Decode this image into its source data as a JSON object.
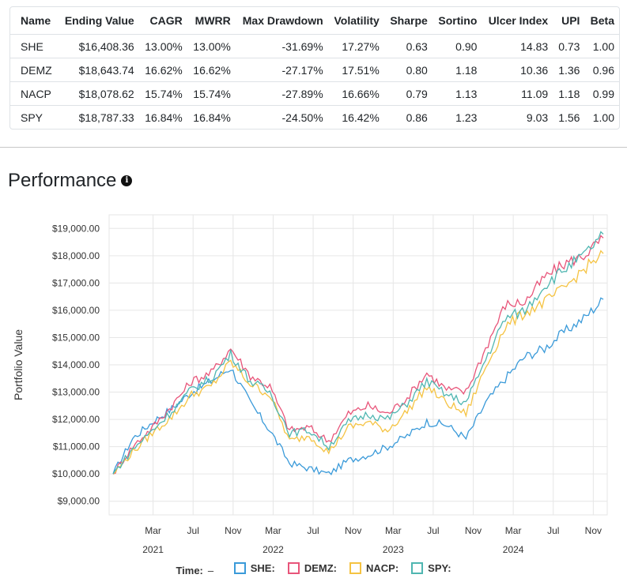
{
  "table": {
    "headers": [
      "Name",
      "Ending Value",
      "CAGR",
      "MWRR",
      "Max Drawdown",
      "Volatility",
      "Sharpe",
      "Sortino",
      "Ulcer Index",
      "UPI",
      "Beta"
    ],
    "rows": [
      [
        "SHE",
        "$16,408.36",
        "13.00%",
        "13.00%",
        "-31.69%",
        "17.27%",
        "0.63",
        "0.90",
        "14.83",
        "0.73",
        "1.00"
      ],
      [
        "DEMZ",
        "$18,643.74",
        "16.62%",
        "16.62%",
        "-27.17%",
        "17.51%",
        "0.80",
        "1.18",
        "10.36",
        "1.36",
        "0.96"
      ],
      [
        "NACP",
        "$18,078.62",
        "15.74%",
        "15.74%",
        "-27.89%",
        "16.66%",
        "0.79",
        "1.13",
        "11.09",
        "1.18",
        "0.99"
      ],
      [
        "SPY",
        "$18,787.33",
        "16.84%",
        "16.84%",
        "-24.50%",
        "16.42%",
        "0.86",
        "1.23",
        "9.03",
        "1.56",
        "1.00"
      ]
    ]
  },
  "section": {
    "title": "Performance",
    "info_icon": "info-circle-icon"
  },
  "chart_data": {
    "type": "line",
    "ylabel": "Portfolio Value",
    "xlabel": "",
    "ylim": [
      8500,
      19500
    ],
    "y_ticks": [
      "$9,000.00",
      "$10,000.00",
      "$11,000.00",
      "$12,000.00",
      "$13,000.00",
      "$14,000.00",
      "$15,000.00",
      "$16,000.00",
      "$17,000.00",
      "$18,000.00",
      "$19,000.00"
    ],
    "x_ticks": [
      {
        "month": "Mar",
        "year": "2021"
      },
      {
        "month": "Jul",
        "year": ""
      },
      {
        "month": "Nov",
        "year": ""
      },
      {
        "month": "Mar",
        "year": "2022"
      },
      {
        "month": "Jul",
        "year": ""
      },
      {
        "month": "Nov",
        "year": ""
      },
      {
        "month": "Mar",
        "year": "2023"
      },
      {
        "month": "Jul",
        "year": ""
      },
      {
        "month": "Nov",
        "year": ""
      },
      {
        "month": "Mar",
        "year": "2024"
      },
      {
        "month": "Jul",
        "year": ""
      },
      {
        "month": "Nov",
        "year": ""
      }
    ],
    "x": [
      "2020-11",
      "2021-01",
      "2021-03",
      "2021-05",
      "2021-07",
      "2021-09",
      "2021-11",
      "2022-01",
      "2022-03",
      "2022-05",
      "2022-07",
      "2022-09",
      "2022-11",
      "2023-01",
      "2023-03",
      "2023-05",
      "2023-07",
      "2023-09",
      "2023-11",
      "2024-01",
      "2024-03",
      "2024-05",
      "2024-07",
      "2024-09",
      "2024-11",
      "2024-12"
    ],
    "series": [
      {
        "name": "SHE",
        "color": "#3a9ad9",
        "values": [
          10000,
          11300,
          11900,
          12400,
          13000,
          13400,
          13900,
          12600,
          11600,
          10400,
          10200,
          10000,
          10500,
          10700,
          11000,
          11400,
          11900,
          11800,
          11300,
          12600,
          13500,
          14300,
          14600,
          15200,
          15700,
          16400
        ]
      },
      {
        "name": "DEMZ",
        "color": "#e8557a",
        "values": [
          10000,
          11000,
          11700,
          12500,
          13400,
          13700,
          14600,
          13600,
          13200,
          11600,
          11700,
          11200,
          12200,
          12500,
          12200,
          12800,
          13700,
          13100,
          13000,
          14600,
          16200,
          16300,
          17200,
          17700,
          18000,
          18650
        ]
      },
      {
        "name": "NACP",
        "color": "#f5c342",
        "values": [
          10000,
          10800,
          11500,
          12100,
          12900,
          13200,
          14100,
          13300,
          12900,
          11200,
          11400,
          10800,
          11700,
          11900,
          11600,
          12300,
          13200,
          12600,
          12200,
          13900,
          15400,
          15900,
          16300,
          16800,
          17500,
          18080
        ]
      },
      {
        "name": "SPY",
        "color": "#4fb6b1",
        "values": [
          10000,
          10900,
          11600,
          12300,
          13100,
          13500,
          14400,
          13400,
          13000,
          11500,
          11600,
          11000,
          11900,
          12200,
          12000,
          12600,
          13400,
          12900,
          12600,
          14200,
          15700,
          16000,
          16900,
          17500,
          18000,
          18790
        ]
      }
    ],
    "legend": {
      "title": "Time:",
      "dash": "–",
      "position": "bottom"
    }
  }
}
